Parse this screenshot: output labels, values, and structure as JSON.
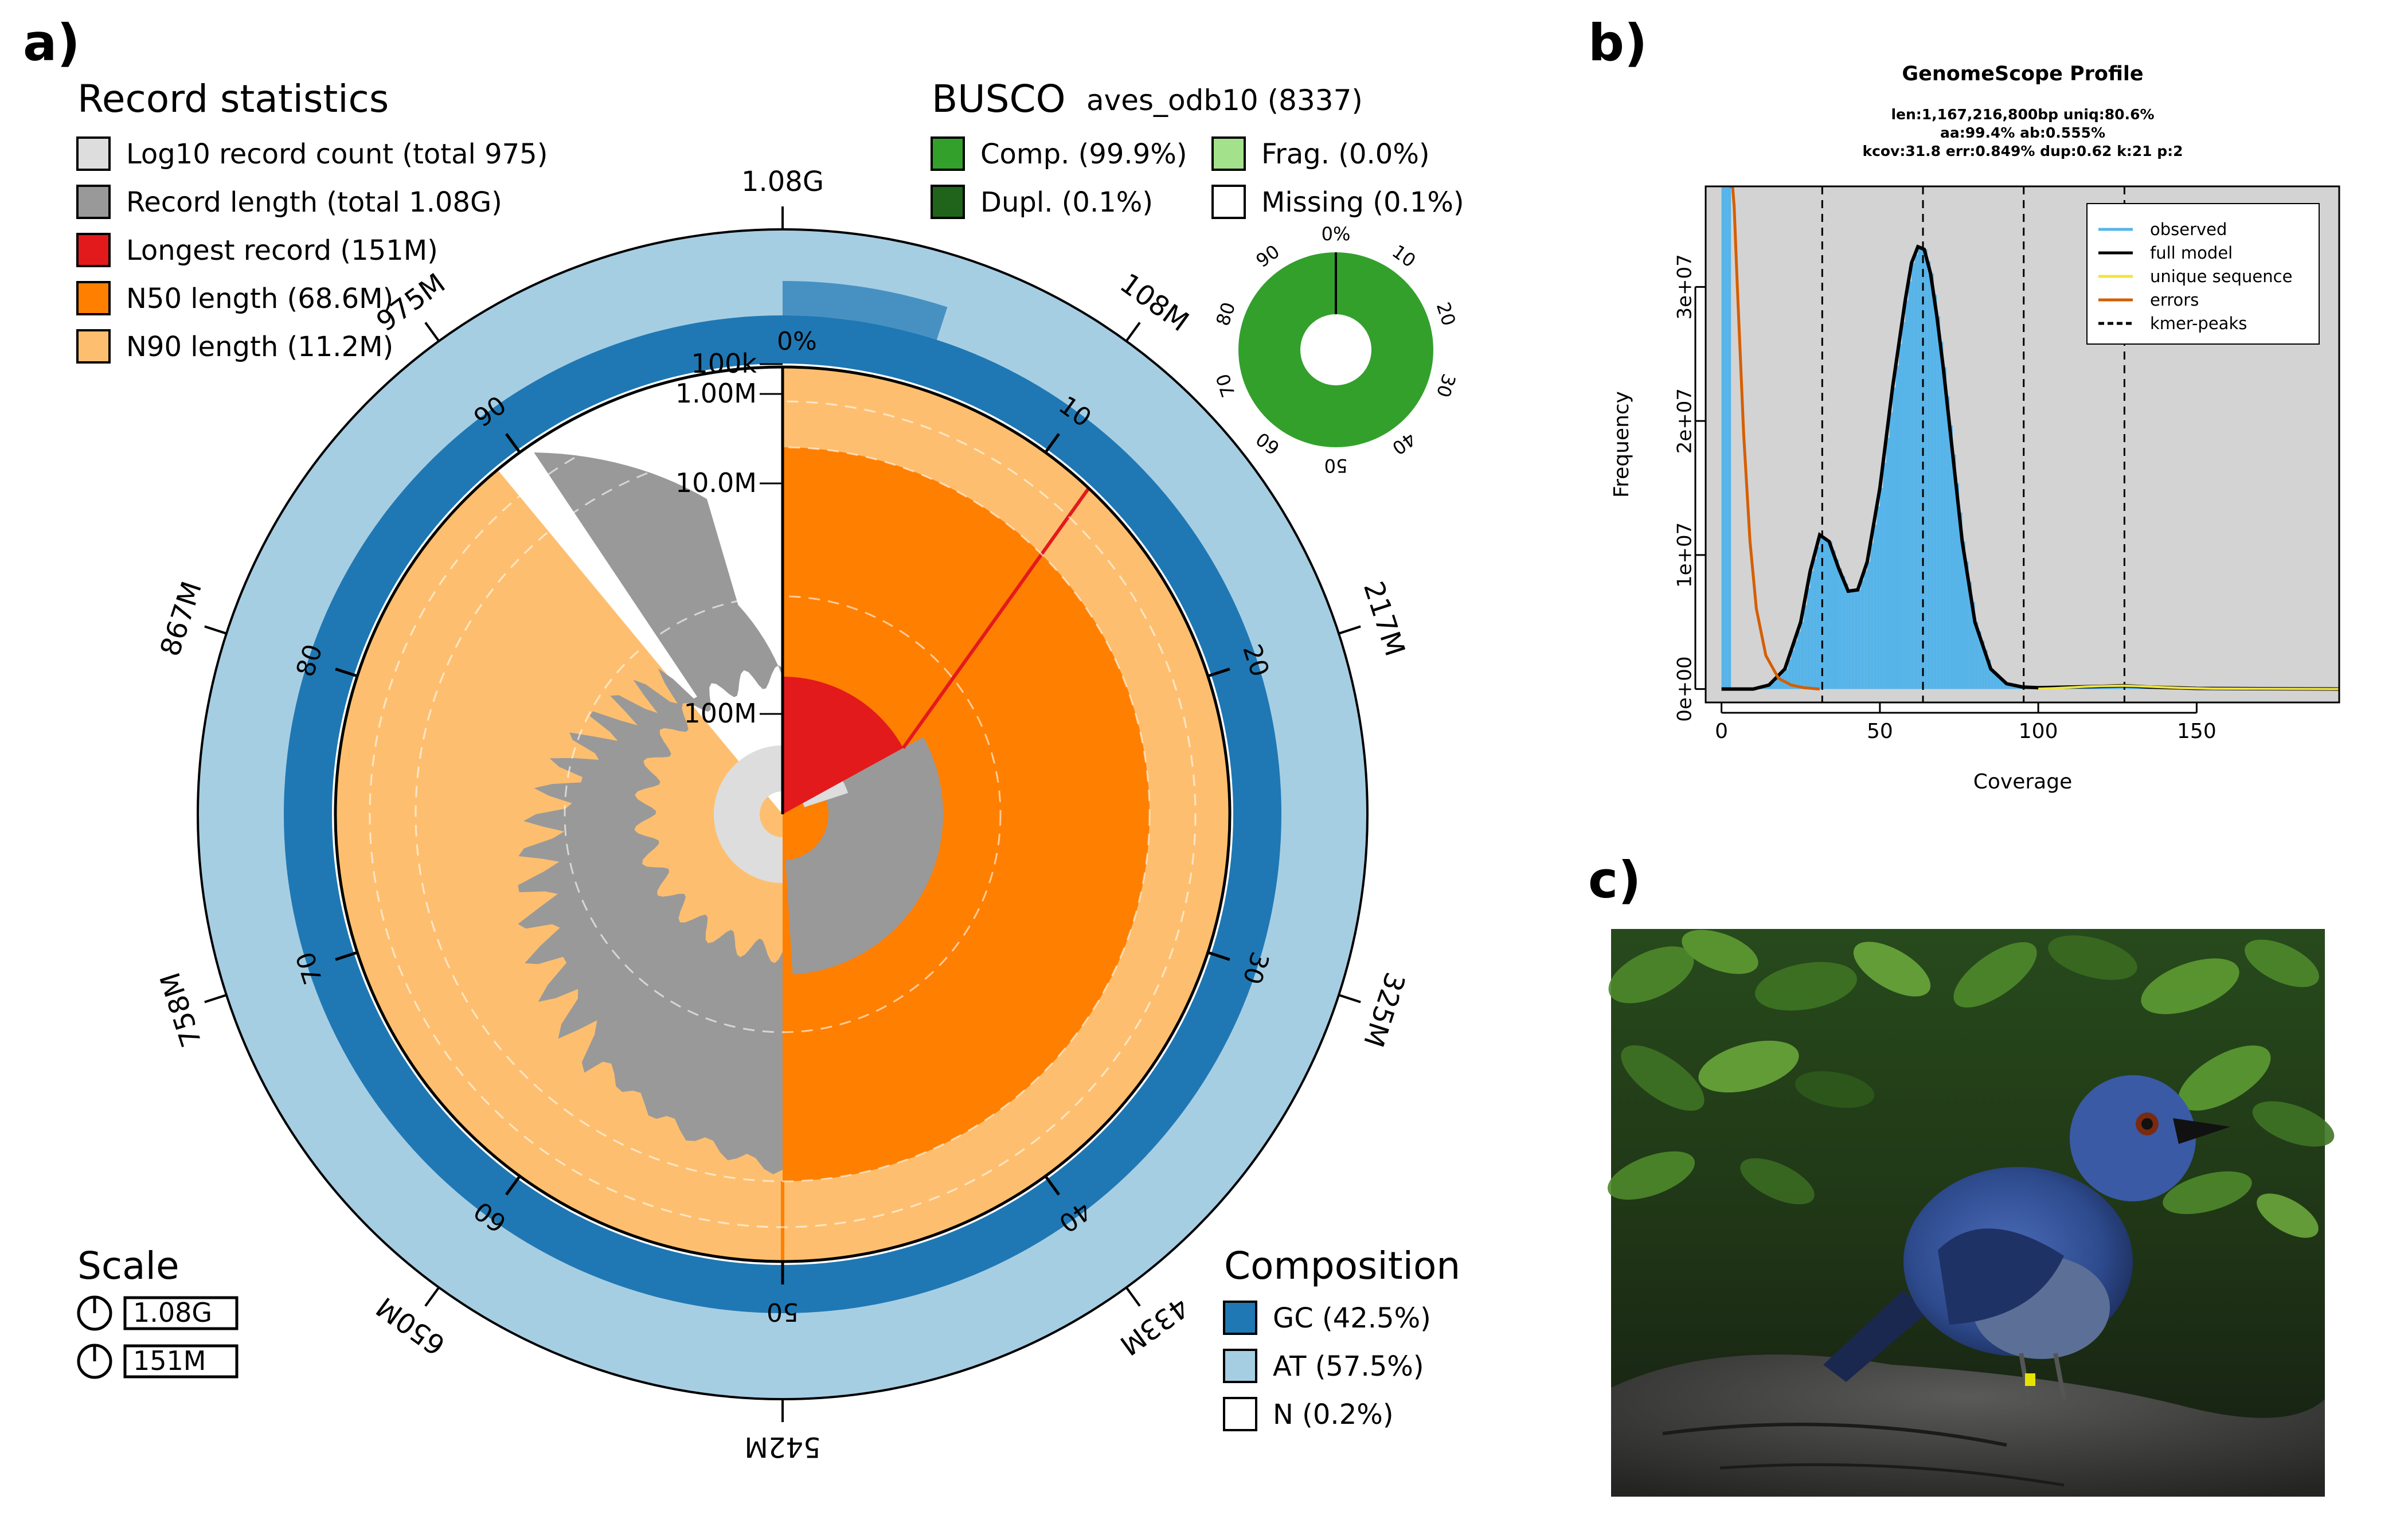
{
  "panels": {
    "a": "a)",
    "b": "b)",
    "c": "c)"
  },
  "colors": {
    "log_count": "#dddddd",
    "record_length": "#999999",
    "longest": "#e31a1c",
    "n50": "#ff7f00",
    "n90": "#fdbf6f",
    "gc": "#1f78b4",
    "at": "#a6cee3",
    "busco_comp": "#33a02c",
    "busco_dupl": "#20641c",
    "busco_frag": "#a3e28b",
    "busco_missing": "#ffffff",
    "observed": "#56b4e9",
    "full_model": "#000000",
    "unique_sequence": "#f0e442",
    "errors": "#d55e00",
    "plot_bg": "#d3d3d3"
  },
  "snail": {
    "record_stats": {
      "title": "Record statistics",
      "items": [
        {
          "key": "log_count",
          "label": "Log10 record count (total 975)"
        },
        {
          "key": "record_length",
          "label": "Record length (total 1.08G)"
        },
        {
          "key": "longest",
          "label": "Longest record (151M)"
        },
        {
          "key": "n50",
          "label": "N50 length (68.6M)"
        },
        {
          "key": "n90",
          "label": "N90 length (11.2M)"
        }
      ]
    },
    "busco": {
      "title": "BUSCO",
      "lineage": "aves_odb10 (8337)",
      "items": [
        {
          "key": "busco_comp",
          "label": "Comp. (99.9%)"
        },
        {
          "key": "busco_frag",
          "label": "Frag. (0.0%)"
        },
        {
          "key": "busco_dupl",
          "label": "Dupl. (0.1%)"
        },
        {
          "key": "busco_missing",
          "label": "Missing (0.1%)"
        }
      ],
      "percent_ticks": [
        "0%",
        "10",
        "20",
        "30",
        "40",
        "50",
        "60",
        "70",
        "80",
        "90"
      ]
    },
    "scale": {
      "title": "Scale",
      "items": [
        "1.08G",
        "151M"
      ]
    },
    "composition": {
      "title": "Composition",
      "items": [
        {
          "key": "gc",
          "label": "GC (42.5%)"
        },
        {
          "key": "at",
          "label": "AT (57.5%)"
        },
        {
          "key": "busco_missing",
          "label": "N (0.2%)"
        }
      ]
    },
    "outer_ticks": [
      "1.08G",
      "108M",
      "217M",
      "325M",
      "433M",
      "542M",
      "650M",
      "758M",
      "867M",
      "975M"
    ],
    "inner_ticks": [
      "10",
      "20",
      "30",
      "40",
      "50",
      "60",
      "70",
      "80",
      "90"
    ],
    "zero_pct": "0%",
    "radial_labels": [
      "100k",
      "1.00M",
      "10.0M",
      "100M"
    ]
  },
  "chart_data": {
    "type": "line",
    "title": "GenomeScope Profile",
    "subtitle_lines": [
      "len:1,167,216,800bp uniq:80.6%",
      "aa:99.4% ab:0.555%",
      "kcov:31.8 err:0.849%  dup:0.62  k:21 p:2"
    ],
    "xlabel": "Coverage",
    "ylabel": "Frequency",
    "xlim": [
      -5,
      195
    ],
    "ylim": [
      -1000000,
      37500000
    ],
    "xticks": [
      {
        "value": 0,
        "label": "0"
      },
      {
        "value": 50,
        "label": "50"
      },
      {
        "value": 100,
        "label": "100"
      },
      {
        "value": 150,
        "label": "150"
      }
    ],
    "yticks": [
      {
        "value": 0,
        "label": "0e+00"
      },
      {
        "value": 10000000,
        "label": "1e+07"
      },
      {
        "value": 20000000,
        "label": "2e+07"
      },
      {
        "value": 30000000,
        "label": "3e+07"
      }
    ],
    "kmer_peaks": [
      31.8,
      63.6,
      95.4,
      127.2
    ],
    "legend": {
      "placement": "top-right",
      "items": [
        {
          "label": "observed",
          "color": "#56b4e9",
          "style": "solid"
        },
        {
          "label": "full model",
          "color": "#000000",
          "style": "solid"
        },
        {
          "label": "unique sequence",
          "color": "#f0e442",
          "style": "solid"
        },
        {
          "label": "errors",
          "color": "#d55e00",
          "style": "solid"
        },
        {
          "label": "kmer-peaks",
          "color": "#000000",
          "style": "dashed"
        }
      ]
    },
    "series": [
      {
        "name": "full model",
        "x": [
          0,
          10,
          15,
          20,
          25,
          28,
          31,
          34,
          37,
          40,
          43,
          46,
          50,
          54,
          58,
          60,
          62,
          64,
          66,
          68,
          70,
          73,
          76,
          80,
          85,
          90,
          95,
          100,
          110,
          120,
          127,
          135,
          150,
          195
        ],
        "y": [
          0,
          0,
          300000,
          1500000,
          5000000,
          8800000,
          11500000,
          11000000,
          9000000,
          7300000,
          7400000,
          9500000,
          15000000,
          22500000,
          29000000,
          31800000,
          33000000,
          32800000,
          31000000,
          27800000,
          24000000,
          17500000,
          11000000,
          5000000,
          1500000,
          400000,
          150000,
          100000,
          150000,
          200000,
          250000,
          150000,
          50000,
          0
        ]
      },
      {
        "name": "errors",
        "x": [
          2.5,
          3.5,
          4,
          5,
          7,
          9,
          11,
          14,
          18,
          22,
          26,
          31
        ],
        "y": [
          37500000,
          37500000,
          36000000,
          30000000,
          19000000,
          11000000,
          6000000,
          2500000,
          800000,
          300000,
          100000,
          0
        ]
      },
      {
        "name": "unique sequence",
        "x": [
          100,
          105,
          110,
          115,
          120,
          127,
          135,
          145,
          155,
          195
        ],
        "y": [
          20000,
          60000,
          120000,
          180000,
          220000,
          250000,
          180000,
          80000,
          30000,
          0
        ]
      }
    ]
  }
}
